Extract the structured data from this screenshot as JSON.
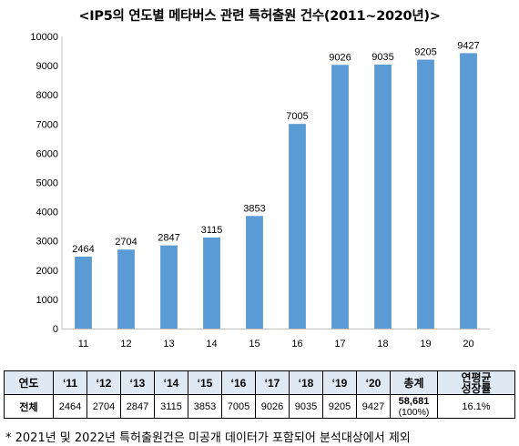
{
  "title": "<IP5의 연도별 메타버스 관련 특허출원 건수(2011~2020년)>",
  "chart_data": {
    "type": "bar",
    "categories": [
      "11",
      "12",
      "13",
      "14",
      "15",
      "16",
      "17",
      "18",
      "19",
      "20"
    ],
    "values": [
      2464,
      2704,
      2847,
      3115,
      3853,
      7005,
      9026,
      9035,
      9205,
      9427
    ],
    "ylim": [
      0,
      10000
    ],
    "yticks": [
      0,
      1000,
      2000,
      3000,
      4000,
      5000,
      6000,
      7000,
      8000,
      9000,
      10000
    ],
    "grid": false,
    "bar_color": "#5b9bd5"
  },
  "table": {
    "header_label": "연도",
    "year_labels": [
      "‘11",
      "‘12",
      "‘13",
      "‘14",
      "‘15",
      "‘16",
      "‘17",
      "‘18",
      "‘19",
      "‘20"
    ],
    "total_header": "총계",
    "cagr_header_line1": "연평균",
    "cagr_header_line2": "성장률",
    "row_label": "전체",
    "values": [
      "2464",
      "2704",
      "2847",
      "3115",
      "3853",
      "7005",
      "9026",
      "9035",
      "9205",
      "9427"
    ],
    "total_value": "58,681",
    "total_pct": "(100%)",
    "cagr_value": "16.1%",
    "header_color": "#dfe9f4"
  },
  "footnote": "* 2021년 및 2022년 특허출원건은 미공개 데이터가 포함되어 분석대상에서 제외"
}
